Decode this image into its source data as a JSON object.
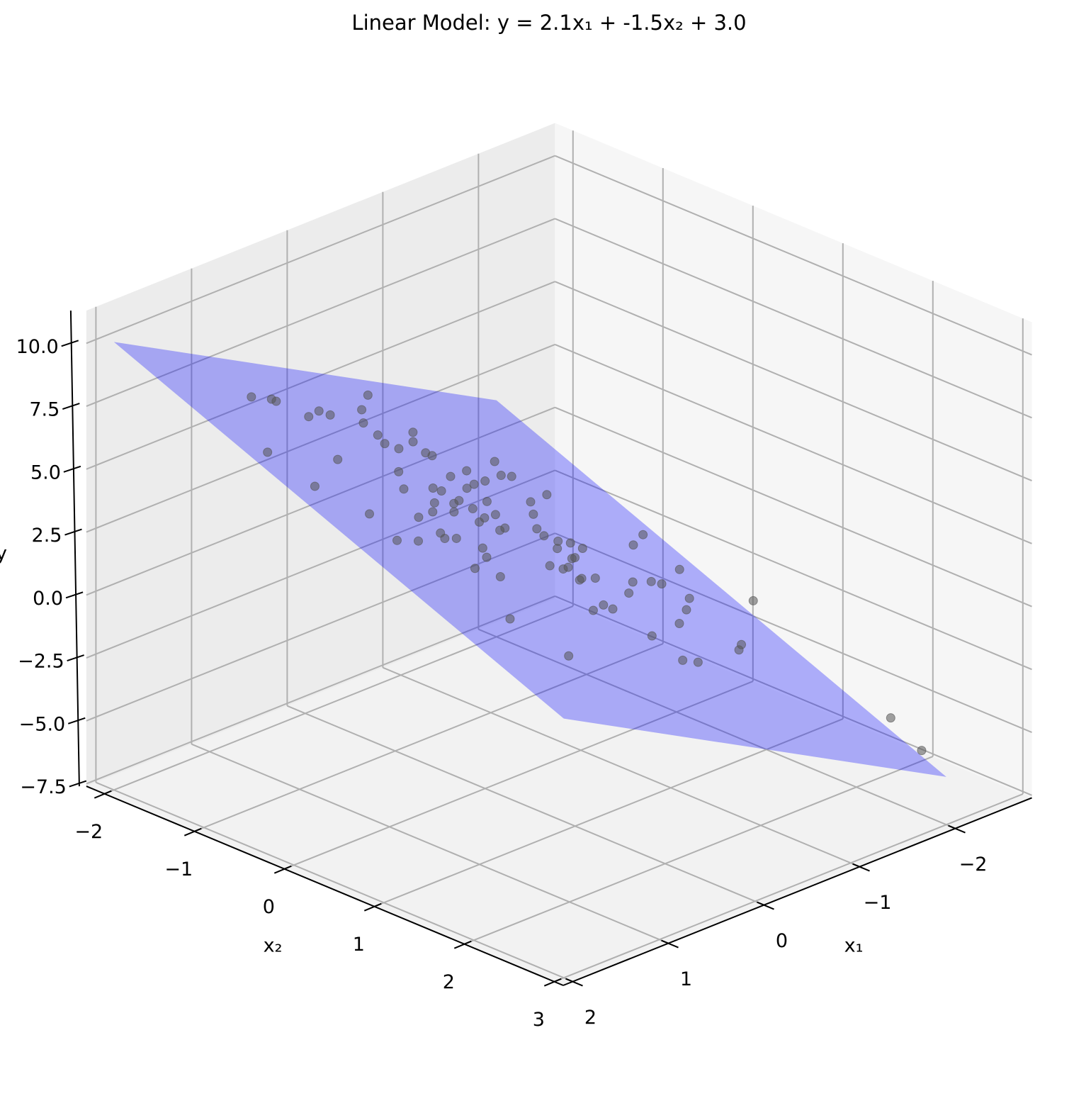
{
  "chart_data": {
    "type": "scatter3d",
    "title": "Linear Model: y = 2.1x₁ + -1.5x₂ + 3.0",
    "xlabel": "x₁",
    "ylabel": "x₂",
    "zlabel": "y",
    "xlim": [
      -2.8,
      2.1
    ],
    "ylim": [
      -2.2,
      3.1
    ],
    "zlim": [
      -7.6,
      11.3
    ],
    "xticks": [
      {
        "value": -2,
        "label": "−2"
      },
      {
        "value": -1,
        "label": "−1"
      },
      0,
      1,
      2
    ],
    "yticks": [
      {
        "value": -2,
        "label": "−2"
      },
      {
        "value": -1,
        "label": "−1"
      },
      0,
      1,
      2,
      3
    ],
    "zticks": [
      {
        "value": -7.5,
        "label": "−7.5"
      },
      {
        "value": -5,
        "label": "−5.0"
      },
      {
        "value": -2.5,
        "label": "−2.5"
      },
      {
        "value": 0,
        "label": "0.0"
      },
      {
        "value": 2.5,
        "label": "2.5"
      },
      {
        "value": 5,
        "label": "5.0"
      },
      {
        "value": 7.5,
        "label": "7.5"
      },
      {
        "value": 10,
        "label": "10.0"
      }
    ],
    "grid": true,
    "points": {
      "color": "#555555",
      "x": [
        1.08,
        0.86,
        0.83,
        1.72,
        1.63,
        0.65,
        0.43,
        0.35,
        0.93,
        -0.43,
        -0.13,
        0.05,
        0.05,
        0.09,
        1.36,
        -0.01,
        -0.44,
        -0.3,
        0.34,
        0.54,
        1.41,
        1.15,
        0.78,
        -0.29,
        -0.33,
        0.15,
        0.36,
        0.52,
        0.09,
        -0.25,
        0.74,
        0.77,
        0.62,
        0.12,
        0.25,
        0.01,
        -0.54,
        -0.28,
        -0.43,
        -0.62,
        -0.04,
        -0.33,
        0.08,
        -0.05,
        -0.24,
        -1.04,
        -0.91,
        -1.03,
        -0.16,
        -0.06,
        0.43,
        0.52,
        0.84,
        0.64,
        1.16,
        -0.88,
        -0.73,
        -0.55,
        -1.2,
        -0.54,
        -0.51,
        -0.64,
        -0.77,
        -0.84,
        -0.15,
        -0.28,
        -0.37,
        -0.55,
        -0.6,
        -0.32,
        -0.37,
        -0.55,
        0.98,
        -0.03,
        -0.24,
        -0.3,
        -0.75,
        -0.97,
        -1.54,
        -1.82,
        -1.21,
        -1.31,
        -0.39,
        -0.93,
        -1.23,
        -1.44,
        -1.76,
        -0.41,
        -0.58,
        -1.29,
        -1.4,
        -2.22,
        -2.19,
        -2.09
      ],
      "y": [
        -1.45,
        -1.46,
        -1.44,
        -0.59,
        -0.16,
        -1.27,
        -1.39,
        -1.35,
        -0.65,
        -1.76,
        -1.51,
        -1.3,
        -1.14,
        -1.02,
        0.16,
        -0.97,
        -1.27,
        -1.12,
        -0.6,
        -0.33,
        0.52,
        0.48,
        0.09,
        -0.97,
        -0.94,
        -0.42,
        -0.18,
        -0.03,
        -0.39,
        -0.65,
        0.29,
        0.37,
        0.34,
        -0.22,
        -0.08,
        -0.28,
        -0.78,
        -0.5,
        -0.58,
        -0.66,
        -0.18,
        -0.33,
        0.02,
        -0.06,
        -0.14,
        -1.0,
        -0.79,
        -0.8,
        0.05,
        0.1,
        0.43,
        0.57,
        0.78,
        0.85,
        1.51,
        -0.43,
        -0.24,
        -0.01,
        -0.59,
        0.08,
        0.26,
        0.13,
        0.13,
        0.19,
        0.56,
        0.57,
        0.53,
        0.38,
        0.36,
        0.71,
        0.68,
        0.64,
        1.97,
        1.17,
        1.06,
        1.1,
        0.8,
        0.61,
        0.01,
        -0.18,
        0.56,
        0.57,
        1.44,
        1.17,
        0.93,
        0.74,
        0.29,
        1.76,
        1.75,
        1.45,
        1.36,
        0.62,
        2.18,
        2.63
      ],
      "z": [
        7.44,
        7.0,
        6.9,
        7.5,
        6.65,
        6.27,
        5.98,
        5.76,
        5.92,
        4.75,
        5.0,
        5.06,
        4.82,
        4.72,
        5.62,
        4.44,
        3.99,
        4.05,
        4.61,
        4.63,
        5.18,
        4.7,
        4.5,
        3.85,
        3.72,
        3.94,
        4.03,
        4.14,
        3.78,
        3.45,
        4.11,
        4.06,
        3.79,
        3.58,
        3.65,
        3.44,
        3.04,
        3.16,
        2.97,
        2.69,
        3.19,
        2.81,
        3.14,
        2.99,
        2.71,
        2.32,
        2.28,
        2.04,
        2.58,
        2.72,
        3.25,
        3.23,
        3.59,
        3.06,
        3.16,
        1.81,
        1.83,
        1.87,
        1.37,
        1.74,
        1.55,
        1.45,
        1.18,
        0.95,
        1.86,
        1.55,
        1.42,
        1.27,
        1.2,
        1.26,
        1.2,
        0.88,
        2.1,
        1.18,
        0.91,
        0.72,
        0.22,
        0.04,
        -0.25,
        -0.55,
        -0.38,
        -0.61,
        0.02,
        -0.71,
        -0.98,
        -1.13,
        -1.14,
        -0.5,
        -0.85,
        -1.89,
        -1.98,
        -2.59,
        -4.87,
        -5.34
      ]
    },
    "plane": {
      "xlim": [
        -2,
        2
      ],
      "ylim": [
        -2,
        3
      ],
      "coef": [
        2.1,
        -1.5
      ],
      "intercept": 3.0,
      "color": "#0000ff",
      "alpha": 0.3
    }
  }
}
